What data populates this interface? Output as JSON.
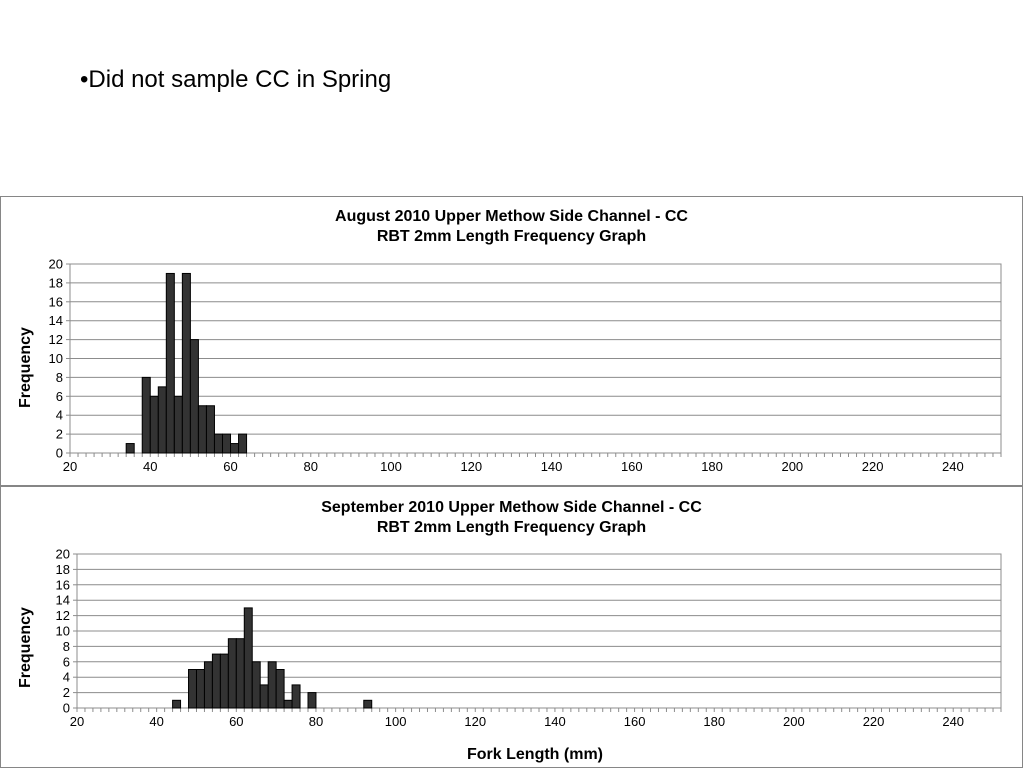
{
  "slide": {
    "bullet": "•Did not sample CC in Spring"
  },
  "chart_data": [
    {
      "type": "bar",
      "title": [
        "August 2010 Upper Methow Side Channel - CC",
        "RBT 2mm Length Frequency Graph"
      ],
      "ylabel": "Frequency",
      "xlabel": "",
      "ylim": [
        0,
        20
      ],
      "yticks": [
        0,
        2,
        4,
        6,
        8,
        10,
        12,
        14,
        16,
        18,
        20
      ],
      "xlim": [
        20,
        252
      ],
      "xticks": [
        20,
        40,
        60,
        80,
        100,
        120,
        140,
        160,
        180,
        200,
        220,
        240
      ],
      "bin_width": 2,
      "grid": true,
      "x": [
        34,
        38,
        40,
        42,
        44,
        46,
        48,
        50,
        52,
        54,
        56,
        58,
        60,
        62
      ],
      "values": [
        1,
        8,
        6,
        7,
        19,
        6,
        19,
        12,
        5,
        5,
        2,
        2,
        1,
        2
      ],
      "bar_color": "#333333"
    },
    {
      "type": "bar",
      "title": [
        "September 2010 Upper Methow Side Channel - CC",
        "RBT 2mm Length Frequency Graph"
      ],
      "ylabel": "Frequency",
      "xlabel": "Fork Length (mm)",
      "ylim": [
        0,
        20
      ],
      "yticks": [
        0,
        2,
        4,
        6,
        8,
        10,
        12,
        14,
        16,
        18,
        20
      ],
      "xlim": [
        20,
        252
      ],
      "xticks": [
        20,
        40,
        60,
        80,
        100,
        120,
        140,
        160,
        180,
        200,
        220,
        240
      ],
      "bin_width": 2,
      "grid": true,
      "x": [
        44,
        48,
        50,
        52,
        54,
        56,
        58,
        60,
        62,
        64,
        66,
        68,
        70,
        72,
        74,
        78,
        92
      ],
      "values": [
        1,
        5,
        5,
        6,
        7,
        7,
        9,
        9,
        13,
        6,
        3,
        6,
        5,
        1,
        3,
        2,
        1
      ],
      "bar_color": "#333333"
    }
  ]
}
